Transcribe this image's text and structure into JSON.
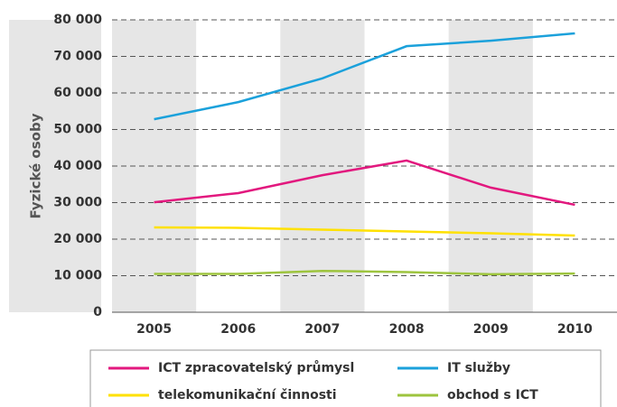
{
  "chart_data": {
    "type": "line",
    "y_axis_label": "Fyzické osoby",
    "categories": [
      "2005",
      "2006",
      "2007",
      "2008",
      "2009",
      "2010"
    ],
    "series": [
      {
        "name": "ICT zpracovatelský průmysl",
        "color": "#e2187e",
        "values": [
          30100,
          32600,
          37500,
          41500,
          34100,
          29400
        ]
      },
      {
        "name": "IT služby",
        "color": "#1ba1db",
        "values": [
          52800,
          57500,
          64000,
          72800,
          74300,
          76300
        ]
      },
      {
        "name": "telekomunikační činnosti",
        "color": "#ffe100",
        "values": [
          23200,
          23100,
          22600,
          22100,
          21600,
          21000
        ]
      },
      {
        "name": "obchod s ICT",
        "color": "#9dc43e",
        "values": [
          10500,
          10500,
          11300,
          11000,
          10400,
          10600
        ]
      }
    ],
    "ylim": [
      0,
      80000
    ],
    "yticks": [
      0,
      {
        "value": 10000,
        "label": "10 000"
      },
      {
        "value": 20000,
        "label": "20 000"
      },
      {
        "value": 30000,
        "label": "30 000"
      },
      {
        "value": 40000,
        "label": "40 000"
      },
      {
        "value": 50000,
        "label": "50 000"
      },
      {
        "value": 60000,
        "label": "60 000"
      },
      {
        "value": 70000,
        "label": "70 000"
      },
      {
        "value": 80000,
        "label": "80 000"
      }
    ],
    "grid": true
  }
}
